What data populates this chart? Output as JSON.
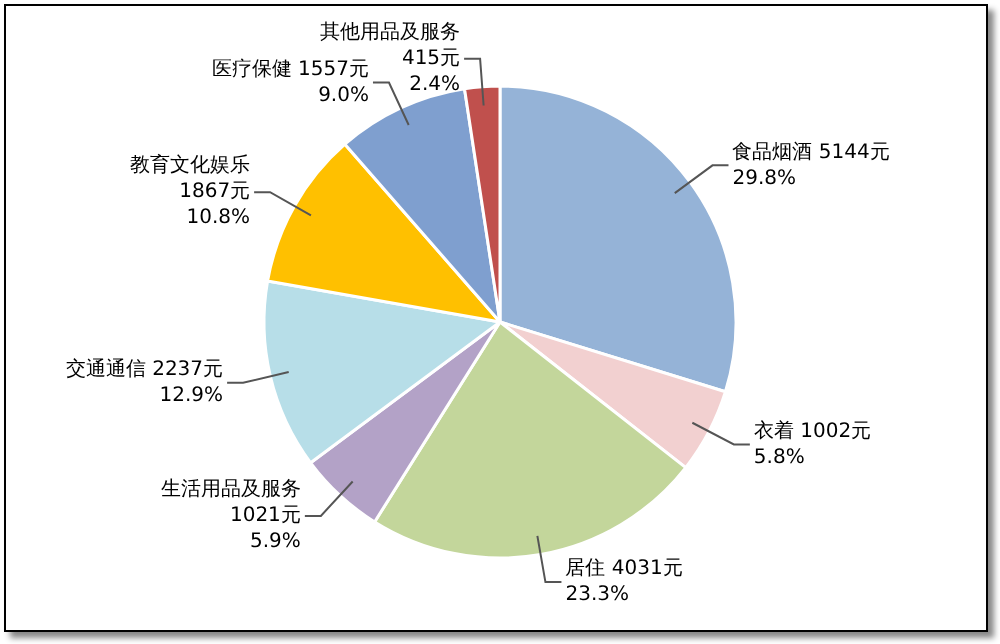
{
  "chart_data": {
    "type": "pie",
    "categories": [
      "食品烟酒",
      "衣着",
      "居住",
      "生活用品及服务",
      "交通通信",
      "教育文化娱乐",
      "医疗保健",
      "其他用品及服务"
    ],
    "values": [
      5144,
      1002,
      4031,
      1021,
      2237,
      1867,
      1557,
      415
    ],
    "colors": [
      "#95b3d7",
      "#f2d0d0",
      "#c3d69b",
      "#b3a2c7",
      "#b7dee8",
      "#ffc000",
      "#7f9fcf",
      "#c0504d"
    ],
    "value_labels": [
      "5144元\n29.8%",
      "1002元\n5.8%",
      "4031元\n23.3%",
      "1021元\n5.9%",
      "2237元\n12.9%",
      "1867元\n10.8%",
      "1557元\n9.0%",
      "415元\n2.4%"
    ],
    "legend": false
  }
}
